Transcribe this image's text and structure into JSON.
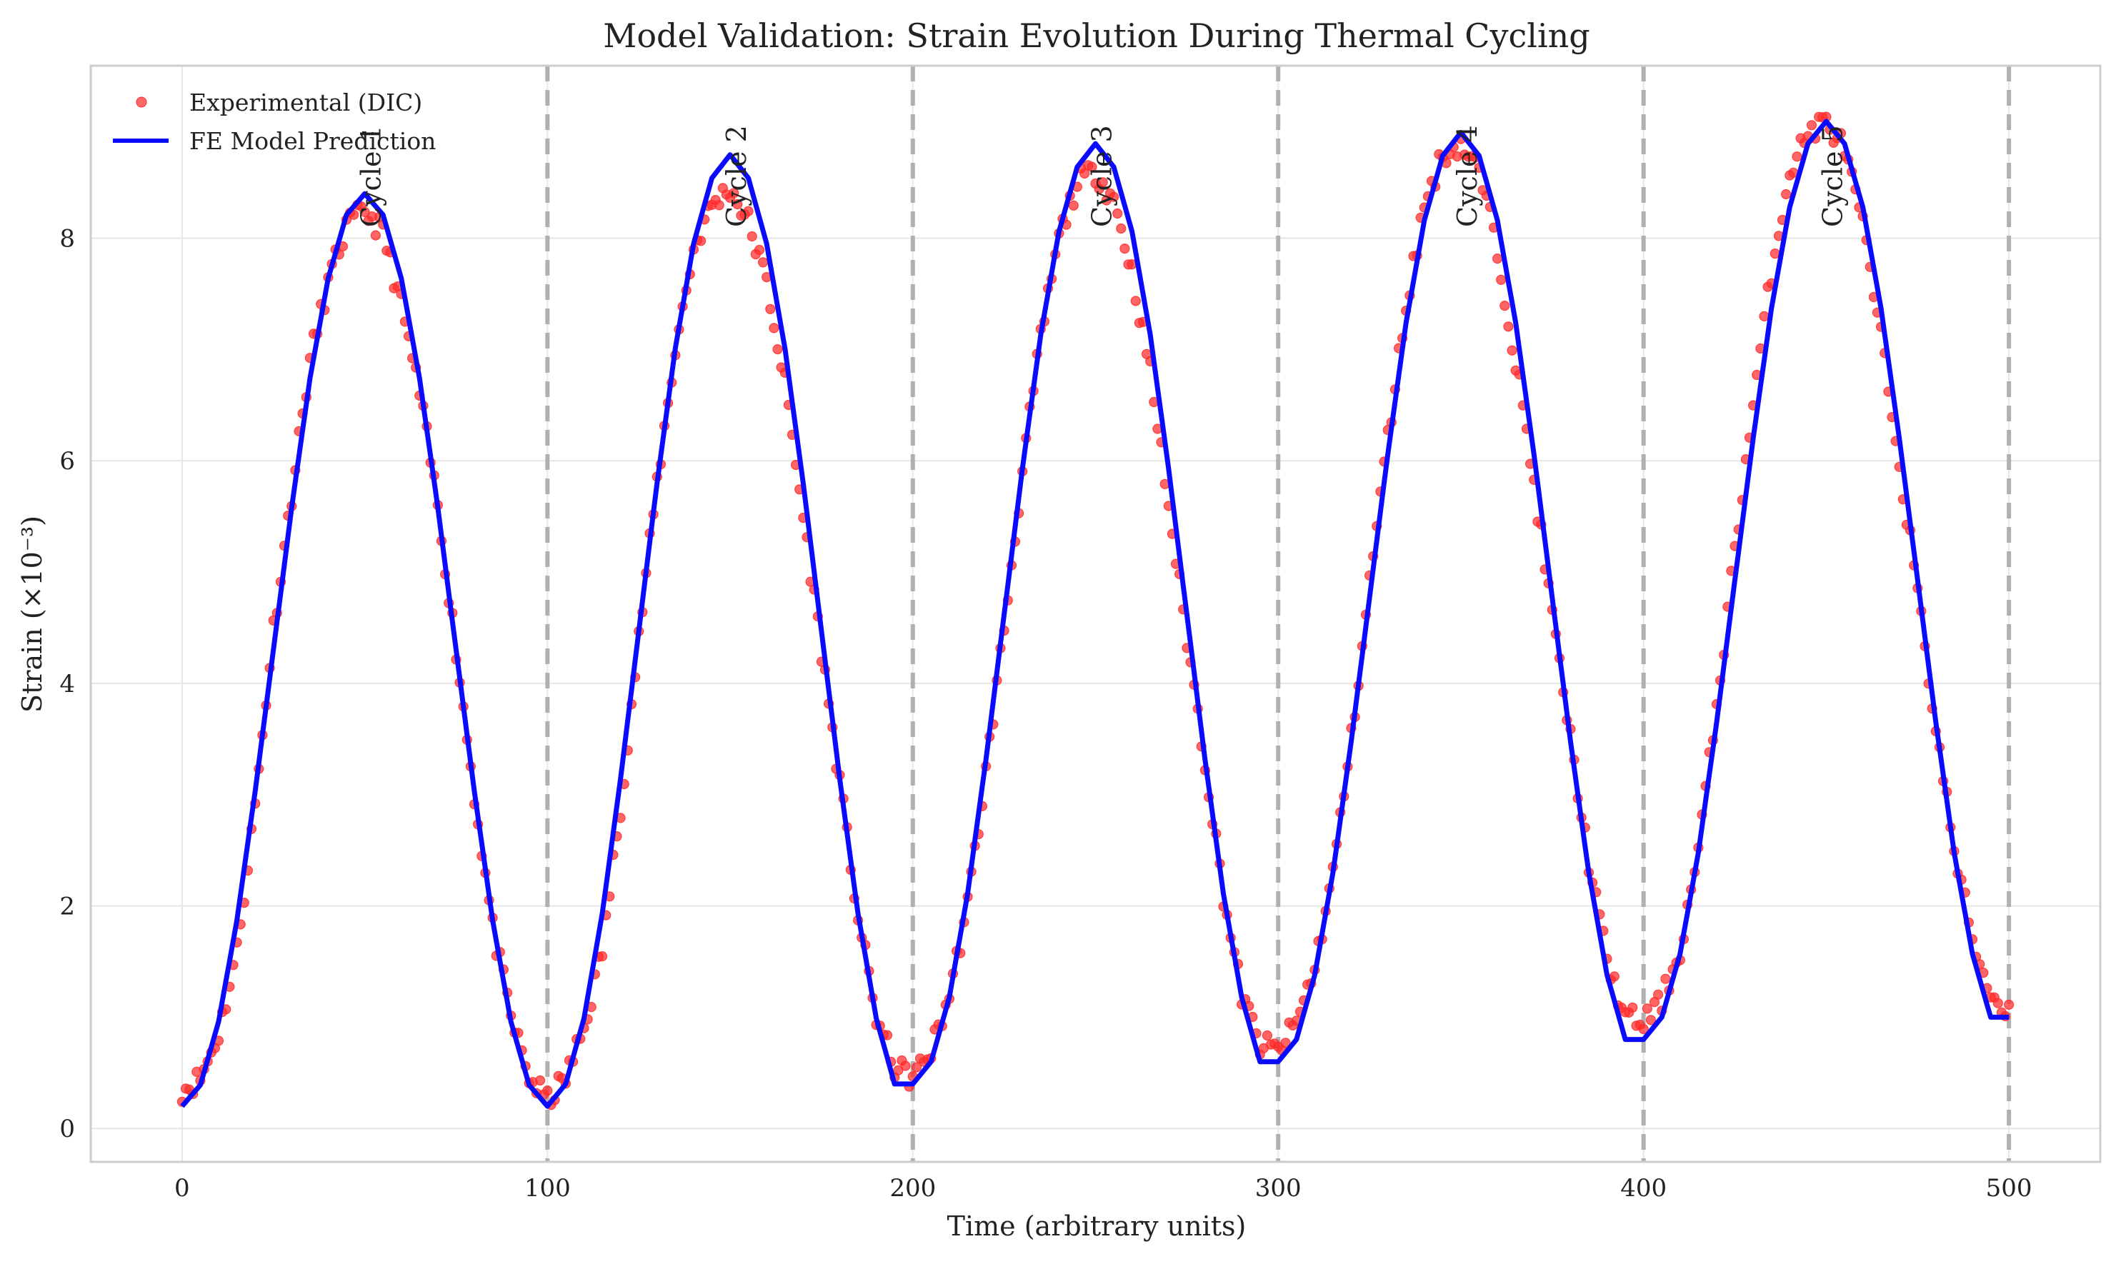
{
  "chart_data": {
    "type": "line",
    "title": "Model Validation: Strain Evolution During Thermal Cycling",
    "xlabel": "Time (arbitrary units)",
    "ylabel": "Strain (×10⁻³)",
    "xlim": [
      -25,
      525
    ],
    "ylim": [
      -0.3,
      9.55
    ],
    "xticks": [
      0,
      100,
      200,
      300,
      400,
      500
    ],
    "yticks": [
      0,
      2,
      4,
      6,
      8
    ],
    "grid": true,
    "legend_position": "top-left",
    "cycle_boundaries": [
      100,
      200,
      300,
      400,
      500
    ],
    "annotations": [
      {
        "text": "Cycle 1",
        "x": 50,
        "y": 8.1
      },
      {
        "text": "Cycle 2",
        "x": 150,
        "y": 8.1
      },
      {
        "text": "Cycle 3",
        "x": 250,
        "y": 8.1
      },
      {
        "text": "Cycle 4",
        "x": 350,
        "y": 8.1
      },
      {
        "text": "Cycle 5",
        "x": 450,
        "y": 8.1
      }
    ],
    "series": [
      {
        "name": "Experimental (DIC)",
        "kind": "scatter",
        "color": "#ff2a2a",
        "x": [
          0,
          5,
          10,
          15,
          20,
          25,
          30,
          35,
          40,
          45,
          50,
          55,
          60,
          65,
          70,
          75,
          80,
          85,
          90,
          95,
          100,
          105,
          110,
          115,
          120,
          125,
          130,
          135,
          140,
          145,
          150,
          155,
          160,
          165,
          170,
          175,
          180,
          185,
          190,
          195,
          200,
          205,
          210,
          215,
          220,
          225,
          230,
          235,
          240,
          245,
          250,
          255,
          260,
          265,
          270,
          275,
          280,
          285,
          290,
          295,
          300,
          305,
          310,
          315,
          320,
          325,
          330,
          335,
          340,
          345,
          350,
          355,
          360,
          365,
          370,
          375,
          380,
          385,
          390,
          395,
          400,
          405,
          410,
          415,
          420,
          425,
          430,
          435,
          440,
          445,
          450,
          455,
          460,
          465,
          470,
          475,
          480,
          485,
          490,
          495,
          500
        ],
        "y": [
          0.35,
          0.45,
          0.85,
          1.6,
          2.9,
          4.5,
          5.7,
          6.9,
          7.6,
          8.1,
          8.25,
          8.05,
          7.4,
          6.6,
          5.6,
          4.3,
          3.0,
          1.8,
          1.0,
          0.45,
          0.25,
          0.45,
          0.9,
          1.6,
          2.9,
          4.4,
          5.8,
          7.0,
          7.9,
          8.3,
          8.45,
          8.15,
          7.6,
          6.7,
          5.5,
          4.3,
          3.1,
          1.9,
          1.0,
          0.55,
          0.45,
          0.7,
          1.2,
          2.0,
          3.2,
          4.5,
          5.9,
          7.1,
          8.0,
          8.5,
          8.6,
          8.35,
          7.7,
          6.8,
          5.6,
          4.4,
          3.3,
          2.1,
          1.2,
          0.75,
          0.7,
          0.95,
          1.45,
          2.3,
          3.5,
          4.9,
          6.2,
          7.4,
          8.3,
          8.75,
          8.85,
          8.6,
          7.9,
          6.9,
          5.8,
          4.6,
          3.5,
          2.4,
          1.5,
          1.0,
          0.95,
          1.15,
          1.6,
          2.5,
          3.8,
          5.2,
          6.5,
          7.7,
          8.6,
          8.95,
          9.05,
          8.8,
          8.1,
          7.1,
          6.0,
          4.8,
          3.6,
          2.5,
          1.7,
          1.2,
          1.05
        ]
      },
      {
        "name": "FE Model Prediction",
        "kind": "line",
        "color": "#0a0aff",
        "x": [
          0,
          5,
          10,
          15,
          20,
          25,
          30,
          35,
          40,
          45,
          50,
          55,
          60,
          65,
          70,
          75,
          80,
          85,
          90,
          95,
          100,
          105,
          110,
          115,
          120,
          125,
          130,
          135,
          140,
          145,
          150,
          155,
          160,
          165,
          170,
          175,
          180,
          185,
          190,
          195,
          200,
          205,
          210,
          215,
          220,
          225,
          230,
          235,
          240,
          245,
          250,
          255,
          260,
          265,
          270,
          275,
          280,
          285,
          290,
          295,
          300,
          305,
          310,
          315,
          320,
          325,
          330,
          335,
          340,
          345,
          350,
          355,
          360,
          365,
          370,
          375,
          380,
          385,
          390,
          395,
          400,
          405,
          410,
          415,
          420,
          425,
          430,
          435,
          440,
          445,
          450,
          455,
          460,
          465,
          470,
          475,
          480,
          485,
          490,
          495,
          500
        ],
        "y": [
          0.2,
          0.39,
          0.96,
          1.87,
          3.03,
          4.3,
          5.58,
          6.74,
          7.64,
          8.21,
          8.4,
          8.21,
          7.64,
          6.74,
          5.58,
          4.3,
          3.03,
          1.87,
          0.96,
          0.39,
          0.2,
          0.4,
          0.99,
          1.93,
          3.14,
          4.47,
          5.8,
          7.01,
          7.95,
          8.54,
          8.75,
          8.54,
          7.95,
          7.01,
          5.8,
          4.47,
          3.14,
          1.93,
          0.99,
          0.4,
          0.4,
          0.6,
          1.18,
          2.11,
          3.31,
          4.62,
          5.93,
          7.13,
          8.06,
          8.64,
          8.85,
          8.64,
          8.06,
          7.13,
          5.93,
          4.62,
          3.31,
          2.11,
          1.18,
          0.6,
          0.6,
          0.8,
          1.38,
          2.3,
          3.48,
          4.77,
          6.06,
          7.24,
          8.16,
          8.74,
          8.95,
          8.74,
          8.16,
          7.24,
          6.06,
          4.77,
          3.48,
          2.3,
          1.38,
          0.8,
          0.8,
          1.0,
          1.57,
          2.48,
          3.65,
          4.93,
          6.2,
          7.37,
          8.28,
          8.85,
          9.05,
          8.85,
          8.28,
          7.37,
          6.2,
          4.93,
          3.65,
          2.48,
          1.57,
          1.0,
          1.0
        ]
      }
    ]
  }
}
